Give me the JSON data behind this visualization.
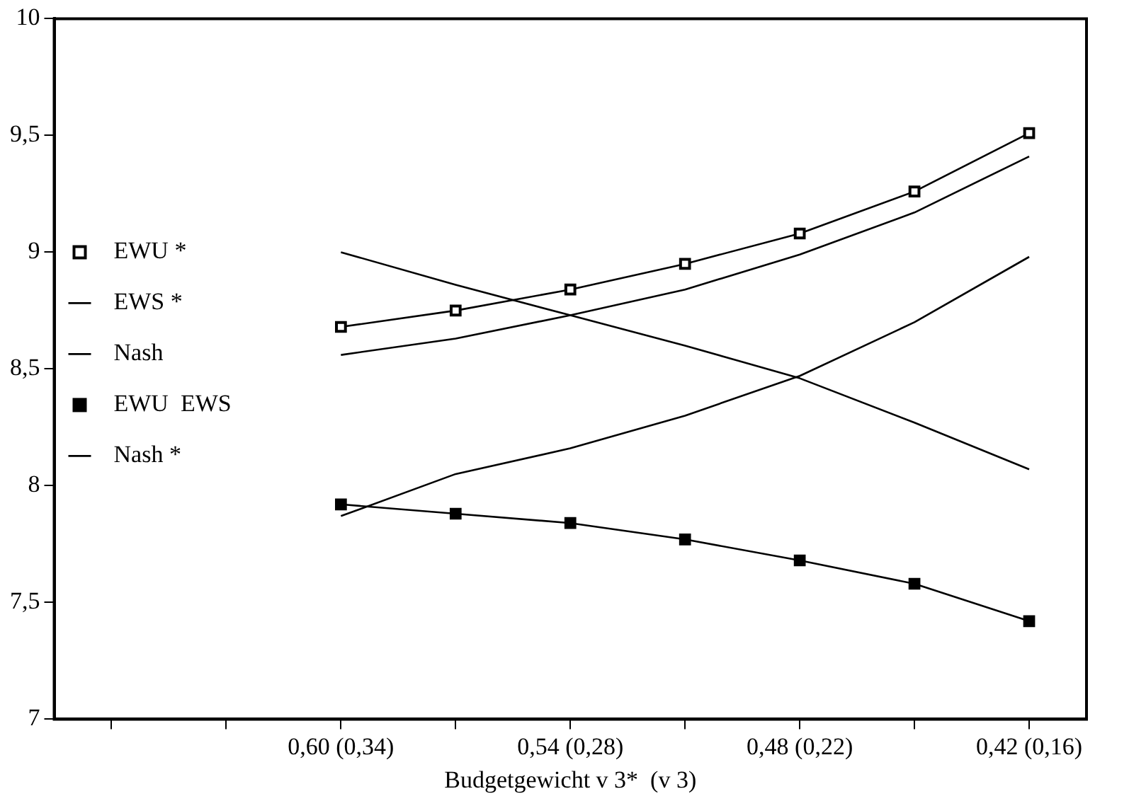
{
  "chart_data": {
    "type": "line",
    "xlabel": "Budgetgewicht v 3*  (v 3)",
    "categories": [
      null,
      null,
      "0,60 (0,34)",
      null,
      "0,54 (0,28)",
      null,
      "0,48 (0,22)",
      null,
      "0,42 (0,16)"
    ],
    "series": [
      {
        "name": "EWU *",
        "color": "#000000",
        "marker": "square",
        "values": [
          null,
          null,
          8.68,
          8.75,
          8.84,
          8.95,
          9.08,
          9.26,
          9.51
        ]
      },
      {
        "name": "EWS *",
        "color": "#000000",
        "marker": "none",
        "values": [
          null,
          null,
          8.56,
          8.63,
          8.73,
          8.84,
          8.99,
          9.17,
          9.41
        ]
      },
      {
        "name": "Nash",
        "color": "#000000",
        "marker": "none",
        "values": [
          null,
          null,
          9.0,
          8.86,
          8.73,
          8.6,
          8.46,
          8.27,
          8.07
        ]
      },
      {
        "name": "EWU  EWS",
        "color": "#000000",
        "marker": "square",
        "values": [
          null,
          null,
          7.92,
          7.88,
          7.84,
          7.77,
          7.68,
          7.58,
          7.42
        ]
      },
      {
        "name": "Nash *",
        "color": "#000000",
        "marker": "none",
        "values": [
          null,
          null,
          7.87,
          8.05,
          8.16,
          8.3,
          8.47,
          8.7,
          8.98
        ]
      }
    ],
    "ylim": [
      7,
      10
    ],
    "yticks": [
      7,
      {
        "value": 7.5,
        "label": "7,5"
      },
      8,
      {
        "value": 8.5,
        "label": "8,5"
      },
      9,
      {
        "value": 9.5,
        "label": "9,5"
      },
      10
    ],
    "grid": false,
    "legend": "left",
    "line_style": "solid"
  }
}
